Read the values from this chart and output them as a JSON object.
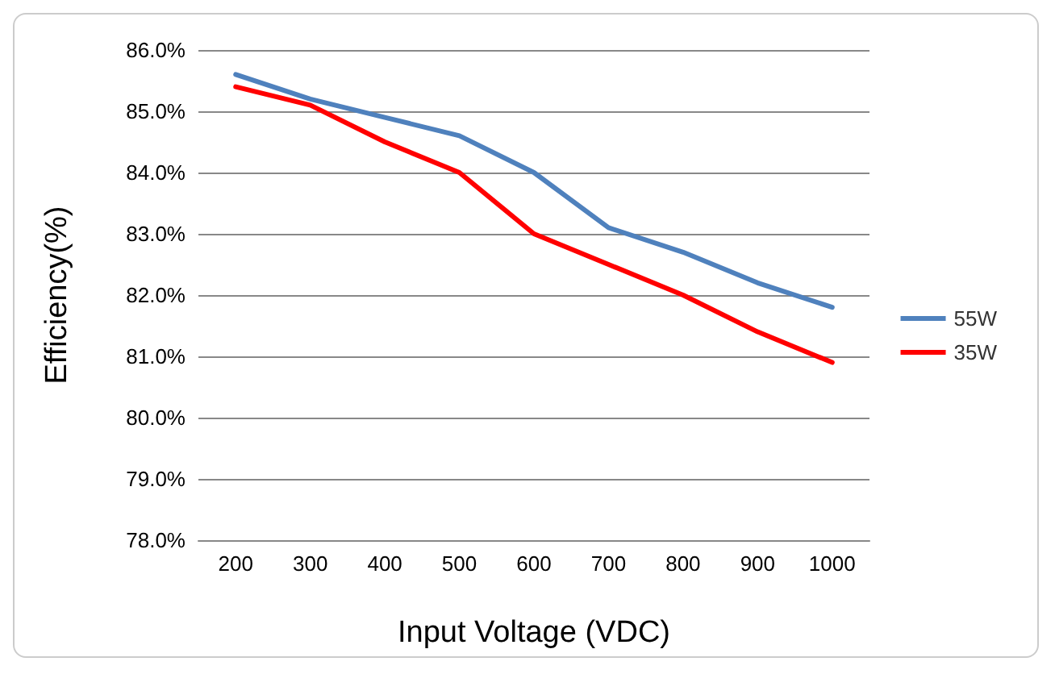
{
  "chart_data": {
    "type": "line",
    "xlabel": "Input Voltage (VDC)",
    "ylabel": "Efficiency(%)",
    "categories": [
      "200",
      "300",
      "400",
      "500",
      "600",
      "700",
      "800",
      "900",
      "1000"
    ],
    "series": [
      {
        "name": "55W",
        "color": "#4f81bd",
        "values": [
          85.6,
          85.2,
          84.9,
          84.6,
          84.0,
          83.1,
          82.7,
          82.2,
          81.8
        ]
      },
      {
        "name": "35W",
        "color": "#ff0000",
        "values": [
          85.4,
          85.1,
          84.5,
          84.0,
          83.0,
          82.5,
          82.0,
          81.4,
          80.9
        ]
      }
    ],
    "ylim": [
      78,
      86
    ],
    "yticks": [
      {
        "value": 78,
        "label": "78.0%"
      },
      {
        "value": 79,
        "label": "79.0%"
      },
      {
        "value": 80,
        "label": "80.0%"
      },
      {
        "value": 81,
        "label": "81.0%"
      },
      {
        "value": 82,
        "label": "82.0%"
      },
      {
        "value": 83,
        "label": "83.0%"
      },
      {
        "value": 84,
        "label": "84.0%"
      },
      {
        "value": 85,
        "label": "85.0%"
      },
      {
        "value": 86,
        "label": "86.0%"
      }
    ],
    "grid": "y",
    "legend": "right",
    "marker": "none",
    "line_style": "solid"
  }
}
